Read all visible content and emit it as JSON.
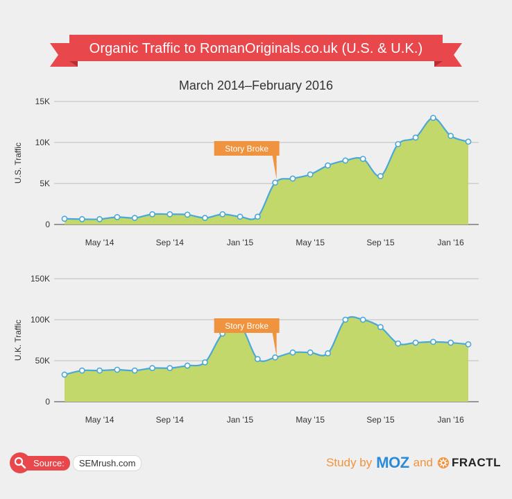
{
  "header": {
    "title": "Organic Traffic to RomanOriginals.co.uk (U.S. & U.K.)",
    "subtitle": "March 2014–February 2016"
  },
  "colors": {
    "banner_red": "#e8474c",
    "banner_dark": "#b22f33",
    "area_fill": "#c3d86a",
    "line": "#4aa8d8",
    "callout": "#f0933f",
    "moz_blue": "#2b8bd6",
    "credit_orange": "#f0933f"
  },
  "chart_data": [
    {
      "type": "area",
      "ylabel": "U.S. Traffic",
      "ylim": [
        0,
        15000
      ],
      "grid": true,
      "yticks": [
        0,
        5000,
        10000,
        15000
      ],
      "ytick_labels": [
        "0",
        "5K",
        "10K",
        "15K"
      ],
      "xtick_labels": [
        "May '14",
        "Sep '14",
        "Jan '15",
        "May '15",
        "Sep '15",
        "Jan '16"
      ],
      "xtick_index": [
        2,
        6,
        10,
        14,
        18,
        22
      ],
      "x": [
        "2014-03",
        "2014-04",
        "2014-05",
        "2014-06",
        "2014-07",
        "2014-08",
        "2014-09",
        "2014-10",
        "2014-11",
        "2014-12",
        "2015-01",
        "2015-02",
        "2015-03",
        "2015-04",
        "2015-05",
        "2015-06",
        "2015-07",
        "2015-08",
        "2015-09",
        "2015-10",
        "2015-11",
        "2015-12",
        "2016-01",
        "2016-02"
      ],
      "values": [
        700,
        650,
        650,
        900,
        800,
        1250,
        1250,
        1200,
        800,
        1250,
        950,
        950,
        5100,
        5600,
        6100,
        7200,
        7800,
        8000,
        5900,
        9800,
        10600,
        13000,
        10800,
        10100
      ],
      "annotation": {
        "label": "Story Broke",
        "at_index": 12
      }
    },
    {
      "type": "area",
      "ylabel": "U.K. Traffic",
      "ylim": [
        0,
        150000
      ],
      "grid": true,
      "yticks": [
        0,
        50000,
        100000,
        150000
      ],
      "ytick_labels": [
        "0",
        "50K",
        "100K",
        "150K"
      ],
      "xtick_labels": [
        "May '14",
        "Sep '14",
        "Jan '15",
        "May '15",
        "Sep '15",
        "Jan '16"
      ],
      "xtick_index": [
        2,
        6,
        10,
        14,
        18,
        22
      ],
      "x": [
        "2014-03",
        "2014-04",
        "2014-05",
        "2014-06",
        "2014-07",
        "2014-08",
        "2014-09",
        "2014-10",
        "2014-11",
        "2014-12",
        "2015-01",
        "2015-02",
        "2015-03",
        "2015-04",
        "2015-05",
        "2015-06",
        "2015-07",
        "2015-08",
        "2015-09",
        "2015-10",
        "2015-11",
        "2015-12",
        "2016-01",
        "2016-02"
      ],
      "values": [
        33000,
        38000,
        38000,
        39000,
        38000,
        41000,
        41000,
        44000,
        48000,
        83000,
        93000,
        52000,
        54000,
        60000,
        60000,
        59000,
        100000,
        100000,
        91000,
        71000,
        72000,
        73000,
        72000,
        70000
      ],
      "annotation": {
        "label": "Story Broke",
        "at_index": 12
      }
    }
  ],
  "footer": {
    "source_label": "Source:",
    "source_site": "SEMrush.com",
    "credit_study": "Study by",
    "credit_moz": "MOZ",
    "credit_and": "and",
    "credit_fractl": "FRACTL"
  }
}
